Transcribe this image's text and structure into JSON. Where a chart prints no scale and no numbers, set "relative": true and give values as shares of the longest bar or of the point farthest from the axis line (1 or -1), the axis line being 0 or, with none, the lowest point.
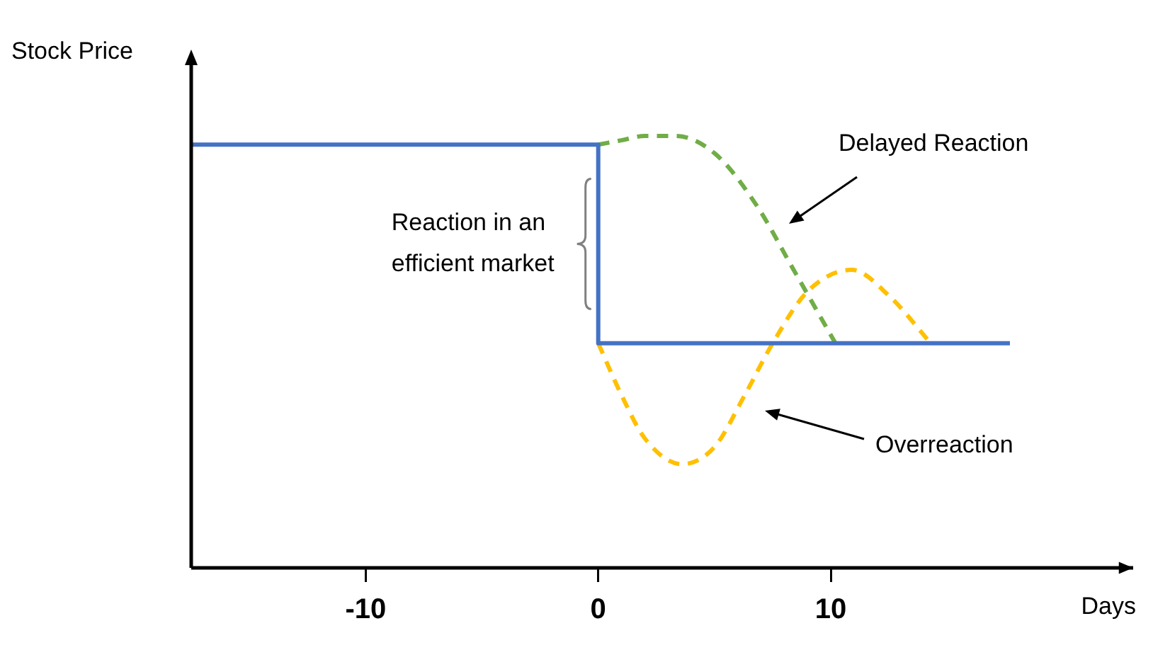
{
  "chart_data": {
    "type": "line",
    "relative": true,
    "xlabel": "Days",
    "ylabel": "Stock Price",
    "xlim": [
      -17.5,
      23
    ],
    "xticks": [
      -10,
      0,
      10
    ],
    "grid": false,
    "legend": false,
    "marker": "none",
    "series": [
      {
        "color": "#4472c4",
        "line_style": "solid",
        "x": [
          -17.5,
          0,
          0,
          17.7
        ],
        "values": [
          0.98,
          0.98,
          0.52,
          0.52
        ]
      },
      {
        "color": "#70ad47",
        "line_style": "dashed",
        "x": [
          0,
          1,
          2,
          3.3,
          5,
          6.8,
          8.4,
          10.2
        ],
        "values": [
          0.98,
          0.99,
          1.0,
          1.0,
          0.96,
          0.84,
          0.69,
          0.52
        ]
      },
      {
        "color": "#ffc000",
        "line_style": "dashed",
        "x": [
          0,
          1,
          2,
          3.6,
          5,
          6.3,
          7.5,
          9,
          10.9,
          12.5,
          14.3
        ],
        "values": [
          0.52,
          0.4,
          0.3,
          0.24,
          0.28,
          0.4,
          0.52,
          0.64,
          0.69,
          0.63,
          0.52
        ]
      }
    ],
    "annotations": [
      "Delayed Reaction",
      {
        "text": "Reaction in an efficient market",
        "x": 0,
        "y": 0.75
      },
      "Overreaction"
    ]
  }
}
